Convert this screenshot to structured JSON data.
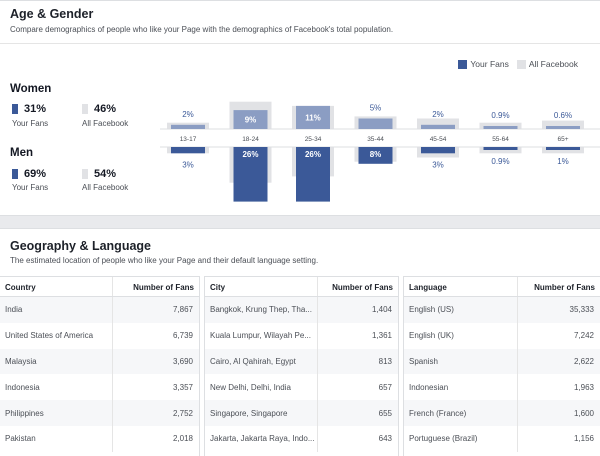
{
  "age_gender": {
    "title": "Age & Gender",
    "subtitle": "Compare demographics of people who like your Page with the demographics of Facebook's total population.",
    "legend": {
      "fans": "Your Fans",
      "all": "All Facebook"
    },
    "women": {
      "label": "Women",
      "fans_pct": "31%",
      "fans_caption": "Your Fans",
      "all_pct": "46%",
      "all_caption": "All Facebook"
    },
    "men": {
      "label": "Men",
      "fans_pct": "69%",
      "fans_caption": "Your Fans",
      "all_pct": "54%",
      "all_caption": "All Facebook"
    },
    "colors": {
      "fans_dark": "#3b5998",
      "fans_light": "#8b9dc3",
      "all_facebook": "#e1e2e5"
    }
  },
  "chart_data": {
    "type": "bar",
    "categories": [
      "13-17",
      "18-24",
      "25-34",
      "35-44",
      "45-54",
      "55-64",
      "65+"
    ],
    "series": [
      {
        "name": "Your Fans - Women",
        "values": [
          2,
          9,
          11,
          5,
          2,
          0.9,
          0.6
        ],
        "labels": [
          "2%",
          "9%",
          "11%",
          "5%",
          "2%",
          "0.9%",
          "0.6%"
        ]
      },
      {
        "name": "Your Fans - Men",
        "values": [
          3,
          26,
          26,
          8,
          3,
          0.9,
          1
        ],
        "labels": [
          "3%",
          "26%",
          "26%",
          "8%",
          "3%",
          "0.9%",
          "1%"
        ]
      },
      {
        "values": [
          3,
          13,
          11,
          6,
          5,
          3,
          4
        ]
      },
      {
        "values": [
          3,
          17,
          14,
          7,
          5,
          3,
          3
        ]
      }
    ]
  },
  "geo": {
    "title": "Geography & Language",
    "subtitle": "The estimated location of people who like your Page and their default language setting.",
    "countries": {
      "h1": "Country",
      "h2": "Number of Fans",
      "rows": [
        [
          "India",
          "7,867"
        ],
        [
          "United States of America",
          "6,739"
        ],
        [
          "Malaysia",
          "3,690"
        ],
        [
          "Indonesia",
          "3,357"
        ],
        [
          "Philippines",
          "2,752"
        ],
        [
          "Pakistan",
          "2,018"
        ]
      ]
    },
    "cities": {
      "h1": "City",
      "h2": "Number of Fans",
      "rows": [
        [
          "Bangkok, Krung Thep, Tha...",
          "1,404"
        ],
        [
          "Kuala Lumpur, Wilayah Pe...",
          "1,361"
        ],
        [
          "Cairo, Al Qahirah, Egypt",
          "813"
        ],
        [
          "New Delhi, Delhi, India",
          "657"
        ],
        [
          "Singapore, Singapore",
          "655"
        ],
        [
          "Jakarta, Jakarta Raya, Indo...",
          "643"
        ]
      ]
    },
    "languages": {
      "h1": "Language",
      "h2": "Number of Fans",
      "rows": [
        [
          "English (US)",
          "35,333"
        ],
        [
          "English (UK)",
          "7,242"
        ],
        [
          "Spanish",
          "2,622"
        ],
        [
          "Indonesian",
          "1,963"
        ],
        [
          "French (France)",
          "1,600"
        ],
        [
          "Portuguese (Brazil)",
          "1,156"
        ]
      ]
    }
  }
}
